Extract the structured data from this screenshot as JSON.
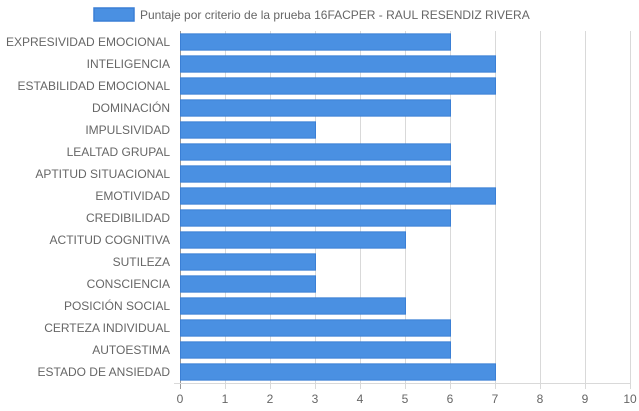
{
  "chart_data": {
    "type": "bar",
    "orientation": "horizontal",
    "title": "",
    "legend": {
      "position": "top",
      "entries": [
        "Puntaje por criterio de la prueba 16FACPER - RAUL RESENDIZ RIVERA"
      ]
    },
    "categories": [
      "EXPRESIVIDAD EMOCIONAL",
      "INTELIGENCIA",
      "ESTABILIDAD EMOCIONAL",
      "DOMINACIÓN",
      "IMPULSIVIDAD",
      "LEALTAD GRUPAL",
      "APTITUD SITUACIONAL",
      "EMOTIVIDAD",
      "CREDIBILIDAD",
      "ACTITUD COGNITIVA",
      "SUTILEZA",
      "CONSCIENCIA",
      "POSICIÓN SOCIAL",
      "CERTEZA INDIVIDUAL",
      "AUTOESTIMA",
      "ESTADO DE ANSIEDAD"
    ],
    "series": [
      {
        "name": "Puntaje por criterio de la prueba 16FACPER - RAUL RESENDIZ RIVERA",
        "values": [
          6,
          7,
          7,
          6,
          3,
          6,
          6,
          7,
          6,
          5,
          3,
          3,
          5,
          6,
          6,
          7
        ],
        "color": "#4a90e2",
        "border_color": "#3a7fd5"
      }
    ],
    "xlim": [
      0,
      10
    ],
    "x_ticks": [
      "0",
      "1",
      "2",
      "3",
      "4",
      "5",
      "6",
      "7",
      "8",
      "9",
      "10"
    ],
    "grid": true,
    "xlabel": "",
    "ylabel": ""
  }
}
